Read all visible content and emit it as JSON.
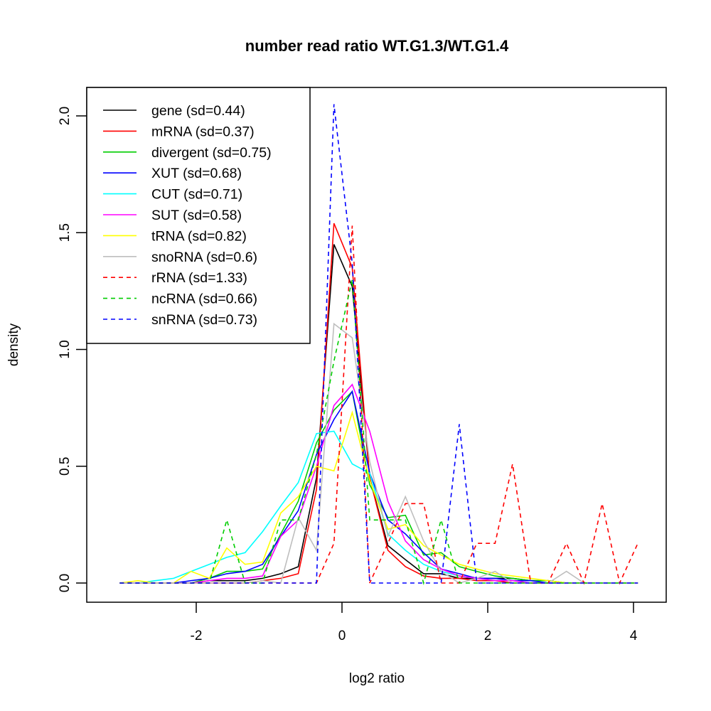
{
  "chart_data": {
    "type": "line",
    "title": "number read ratio WT.G1.3/WT.G1.4",
    "xlabel": "log2 ratio",
    "ylabel": "density",
    "xlim": [
      -3.3,
      4.5
    ],
    "ylim": [
      -0.08,
      2.13
    ],
    "xticks": [
      -2,
      0,
      2,
      4
    ],
    "xtick_labels": [
      "-2",
      "0",
      "2",
      "4"
    ],
    "yticks": [
      0,
      0.5,
      1,
      1.5,
      2
    ],
    "ytick_labels": [
      "0.0",
      "0.5",
      "1.0",
      "1.5",
      "2.0"
    ],
    "grid": false,
    "legend_position": "top-left",
    "x": [
      -3.05,
      -2.8,
      -2.56,
      -2.31,
      -2.07,
      -1.82,
      -1.58,
      -1.33,
      -1.09,
      -0.84,
      -0.6,
      -0.35,
      -0.11,
      0.14,
      0.38,
      0.63,
      0.87,
      1.12,
      1.36,
      1.61,
      1.85,
      2.1,
      2.34,
      2.59,
      2.83,
      3.08,
      3.32,
      3.57,
      3.81,
      4.06
    ],
    "series": [
      {
        "name": "gene",
        "label": "gene (sd=0.44)",
        "color": "#000000",
        "dash": false,
        "values": [
          0,
          0,
          0,
          0,
          0,
          0.01,
          0.01,
          0.01,
          0.02,
          0.04,
          0.07,
          0.45,
          1.45,
          1.27,
          0.45,
          0.16,
          0.1,
          0.04,
          0.04,
          0.02,
          0.02,
          0.02,
          0.02,
          0.01,
          0.01,
          0,
          0,
          0,
          0,
          0
        ]
      },
      {
        "name": "mRNA",
        "label": "mRNA (sd=0.37)",
        "color": "#ff0000",
        "dash": false,
        "values": [
          0,
          0,
          0,
          0,
          0,
          0,
          0,
          0,
          0.01,
          0.02,
          0.04,
          0.4,
          1.54,
          1.35,
          0.45,
          0.14,
          0.07,
          0.03,
          0.02,
          0.02,
          0.01,
          0.01,
          0,
          0,
          0,
          0,
          0,
          0,
          0,
          0
        ]
      },
      {
        "name": "divergent",
        "label": "divergent (sd=0.75)",
        "color": "#00cd00",
        "dash": false,
        "values": [
          0,
          0,
          0,
          0,
          0,
          0.02,
          0.05,
          0.05,
          0.06,
          0.21,
          0.35,
          0.6,
          0.74,
          0.82,
          0.42,
          0.28,
          0.29,
          0.12,
          0.13,
          0.07,
          0.05,
          0.03,
          0.02,
          0.01,
          0.01,
          0,
          0,
          0,
          0,
          0
        ]
      },
      {
        "name": "XUT",
        "label": "XUT (sd=0.68)",
        "color": "#0000ff",
        "dash": false,
        "values": [
          0,
          0,
          0,
          0,
          0.01,
          0.02,
          0.04,
          0.05,
          0.08,
          0.2,
          0.31,
          0.55,
          0.7,
          0.82,
          0.47,
          0.27,
          0.21,
          0.13,
          0.06,
          0.04,
          0.02,
          0.02,
          0.01,
          0.01,
          0,
          0,
          0,
          0,
          0,
          0
        ]
      },
      {
        "name": "CUT",
        "label": "CUT (sd=0.71)",
        "color": "#00ffff",
        "dash": false,
        "values": [
          0,
          0,
          0.01,
          0.02,
          0.05,
          0.08,
          0.11,
          0.13,
          0.22,
          0.33,
          0.43,
          0.64,
          0.65,
          0.51,
          0.47,
          0.21,
          0.14,
          0.08,
          0.05,
          0.03,
          0.02,
          0.01,
          0.01,
          0,
          0,
          0,
          0,
          0,
          0,
          0
        ]
      },
      {
        "name": "SUT",
        "label": "SUT (sd=0.58)",
        "color": "#ff00ff",
        "dash": false,
        "values": [
          0,
          0,
          0,
          0,
          0,
          0.01,
          0.02,
          0.02,
          0.03,
          0.2,
          0.27,
          0.5,
          0.76,
          0.85,
          0.65,
          0.35,
          0.18,
          0.1,
          0.06,
          0.03,
          0.02,
          0.01,
          0.01,
          0,
          0,
          0,
          0,
          0,
          0,
          0
        ]
      },
      {
        "name": "tRNA",
        "label": "tRNA (sd=0.82)",
        "color": "#ffff00",
        "dash": false,
        "values": [
          0,
          0.01,
          0,
          0,
          0.05,
          0.02,
          0.15,
          0.08,
          0.09,
          0.3,
          0.37,
          0.5,
          0.48,
          0.73,
          0.44,
          0.23,
          0.25,
          0.16,
          0.12,
          0.08,
          0.06,
          0.04,
          0.03,
          0.02,
          0.01,
          0,
          0,
          0,
          0,
          0
        ]
      },
      {
        "name": "snoRNA",
        "label": "snoRNA (sd=0.6)",
        "color": "#bebebe",
        "dash": false,
        "values": [
          0,
          0,
          0,
          0,
          0,
          0,
          0,
          0,
          0.01,
          0,
          0.28,
          0.14,
          1.11,
          1.05,
          0.52,
          0.2,
          0.37,
          0.18,
          0.05,
          0,
          0.02,
          0.05,
          0,
          0,
          0,
          0.05,
          0,
          0,
          0,
          0
        ]
      },
      {
        "name": "rRNA",
        "label": "rRNA (sd=1.33)",
        "color": "#ff0000",
        "dash": true,
        "values": [
          0,
          0,
          0,
          0,
          0,
          0,
          0,
          0,
          0,
          0,
          0,
          0,
          0.17,
          1.53,
          0,
          0.17,
          0.34,
          0.34,
          0,
          0,
          0.17,
          0.17,
          0.51,
          0,
          0,
          0.17,
          0,
          0.34,
          0,
          0.17
        ]
      },
      {
        "name": "ncRNA",
        "label": "ncRNA (sd=0.66)",
        "color": "#00cd00",
        "dash": true,
        "values": [
          0,
          0,
          0,
          0,
          0,
          0,
          0.27,
          0,
          0,
          0.27,
          0.27,
          0.55,
          0.95,
          1.3,
          0.27,
          0.27,
          0.27,
          0,
          0.27,
          0,
          0,
          0,
          0,
          0,
          0,
          0,
          0,
          0,
          0,
          0
        ]
      },
      {
        "name": "snRNA",
        "label": "snRNA (sd=0.73)",
        "color": "#0000ff",
        "dash": true,
        "values": [
          0,
          0,
          0,
          0,
          0,
          0,
          0,
          0,
          0,
          0,
          0,
          0,
          2.05,
          1.37,
          0,
          0,
          0,
          0,
          0,
          0.68,
          0,
          0,
          0,
          0,
          0,
          0,
          0,
          0,
          0,
          0
        ]
      }
    ]
  }
}
